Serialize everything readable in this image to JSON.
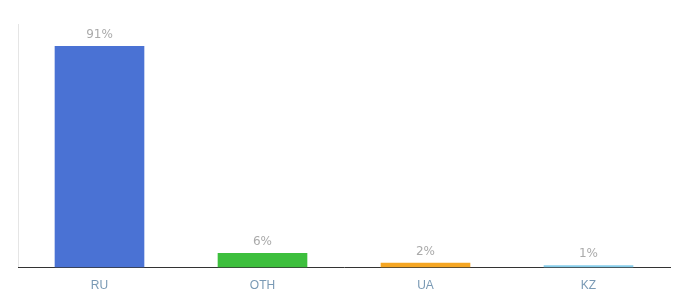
{
  "chart_data": {
    "type": "bar",
    "categories": [
      "RU",
      "OTH",
      "UA",
      "KZ"
    ],
    "values": [
      91,
      6,
      2,
      1
    ],
    "value_labels": [
      "91%",
      "6%",
      "2%",
      "1%"
    ],
    "data_labels": true,
    "colors": [
      "#4a72d4",
      "#3dbf3d",
      "#f5a623",
      "#87ceeb"
    ],
    "ylim": [
      0,
      100
    ],
    "grid": false,
    "tick_labels": "x"
  }
}
